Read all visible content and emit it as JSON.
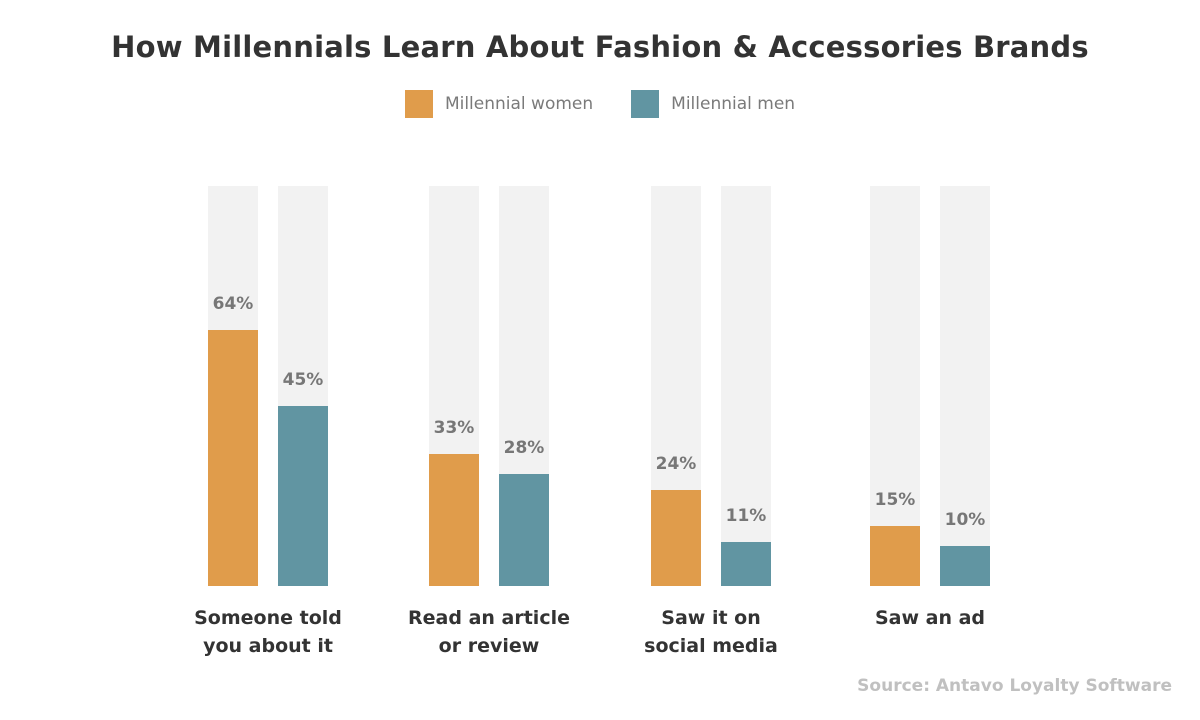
{
  "colors": {
    "women": "#E09C4B",
    "men": "#6195A2",
    "track": "#F2F2F2",
    "value_label": "#777777",
    "category_label": "#333333"
  },
  "chart_data": {
    "type": "bar",
    "title": "How Millennials Learn About Fashion & Accessories Brands",
    "categories": [
      [
        "Someone told",
        "you about it"
      ],
      [
        "Read an article",
        "or review"
      ],
      [
        "Saw it on",
        "social media"
      ],
      [
        "Saw an ad"
      ]
    ],
    "series": [
      {
        "name": "Millennial women",
        "values": [
          64,
          33,
          24,
          15
        ],
        "color": "#E09C4B"
      },
      {
        "name": "Millennial men",
        "values": [
          45,
          28,
          11,
          10
        ],
        "color": "#6195A2"
      }
    ],
    "ylim": [
      0,
      100
    ],
    "value_suffix": "%",
    "legend_position": "top",
    "grid": false
  },
  "source": "Source: Antavo Loyalty Software"
}
